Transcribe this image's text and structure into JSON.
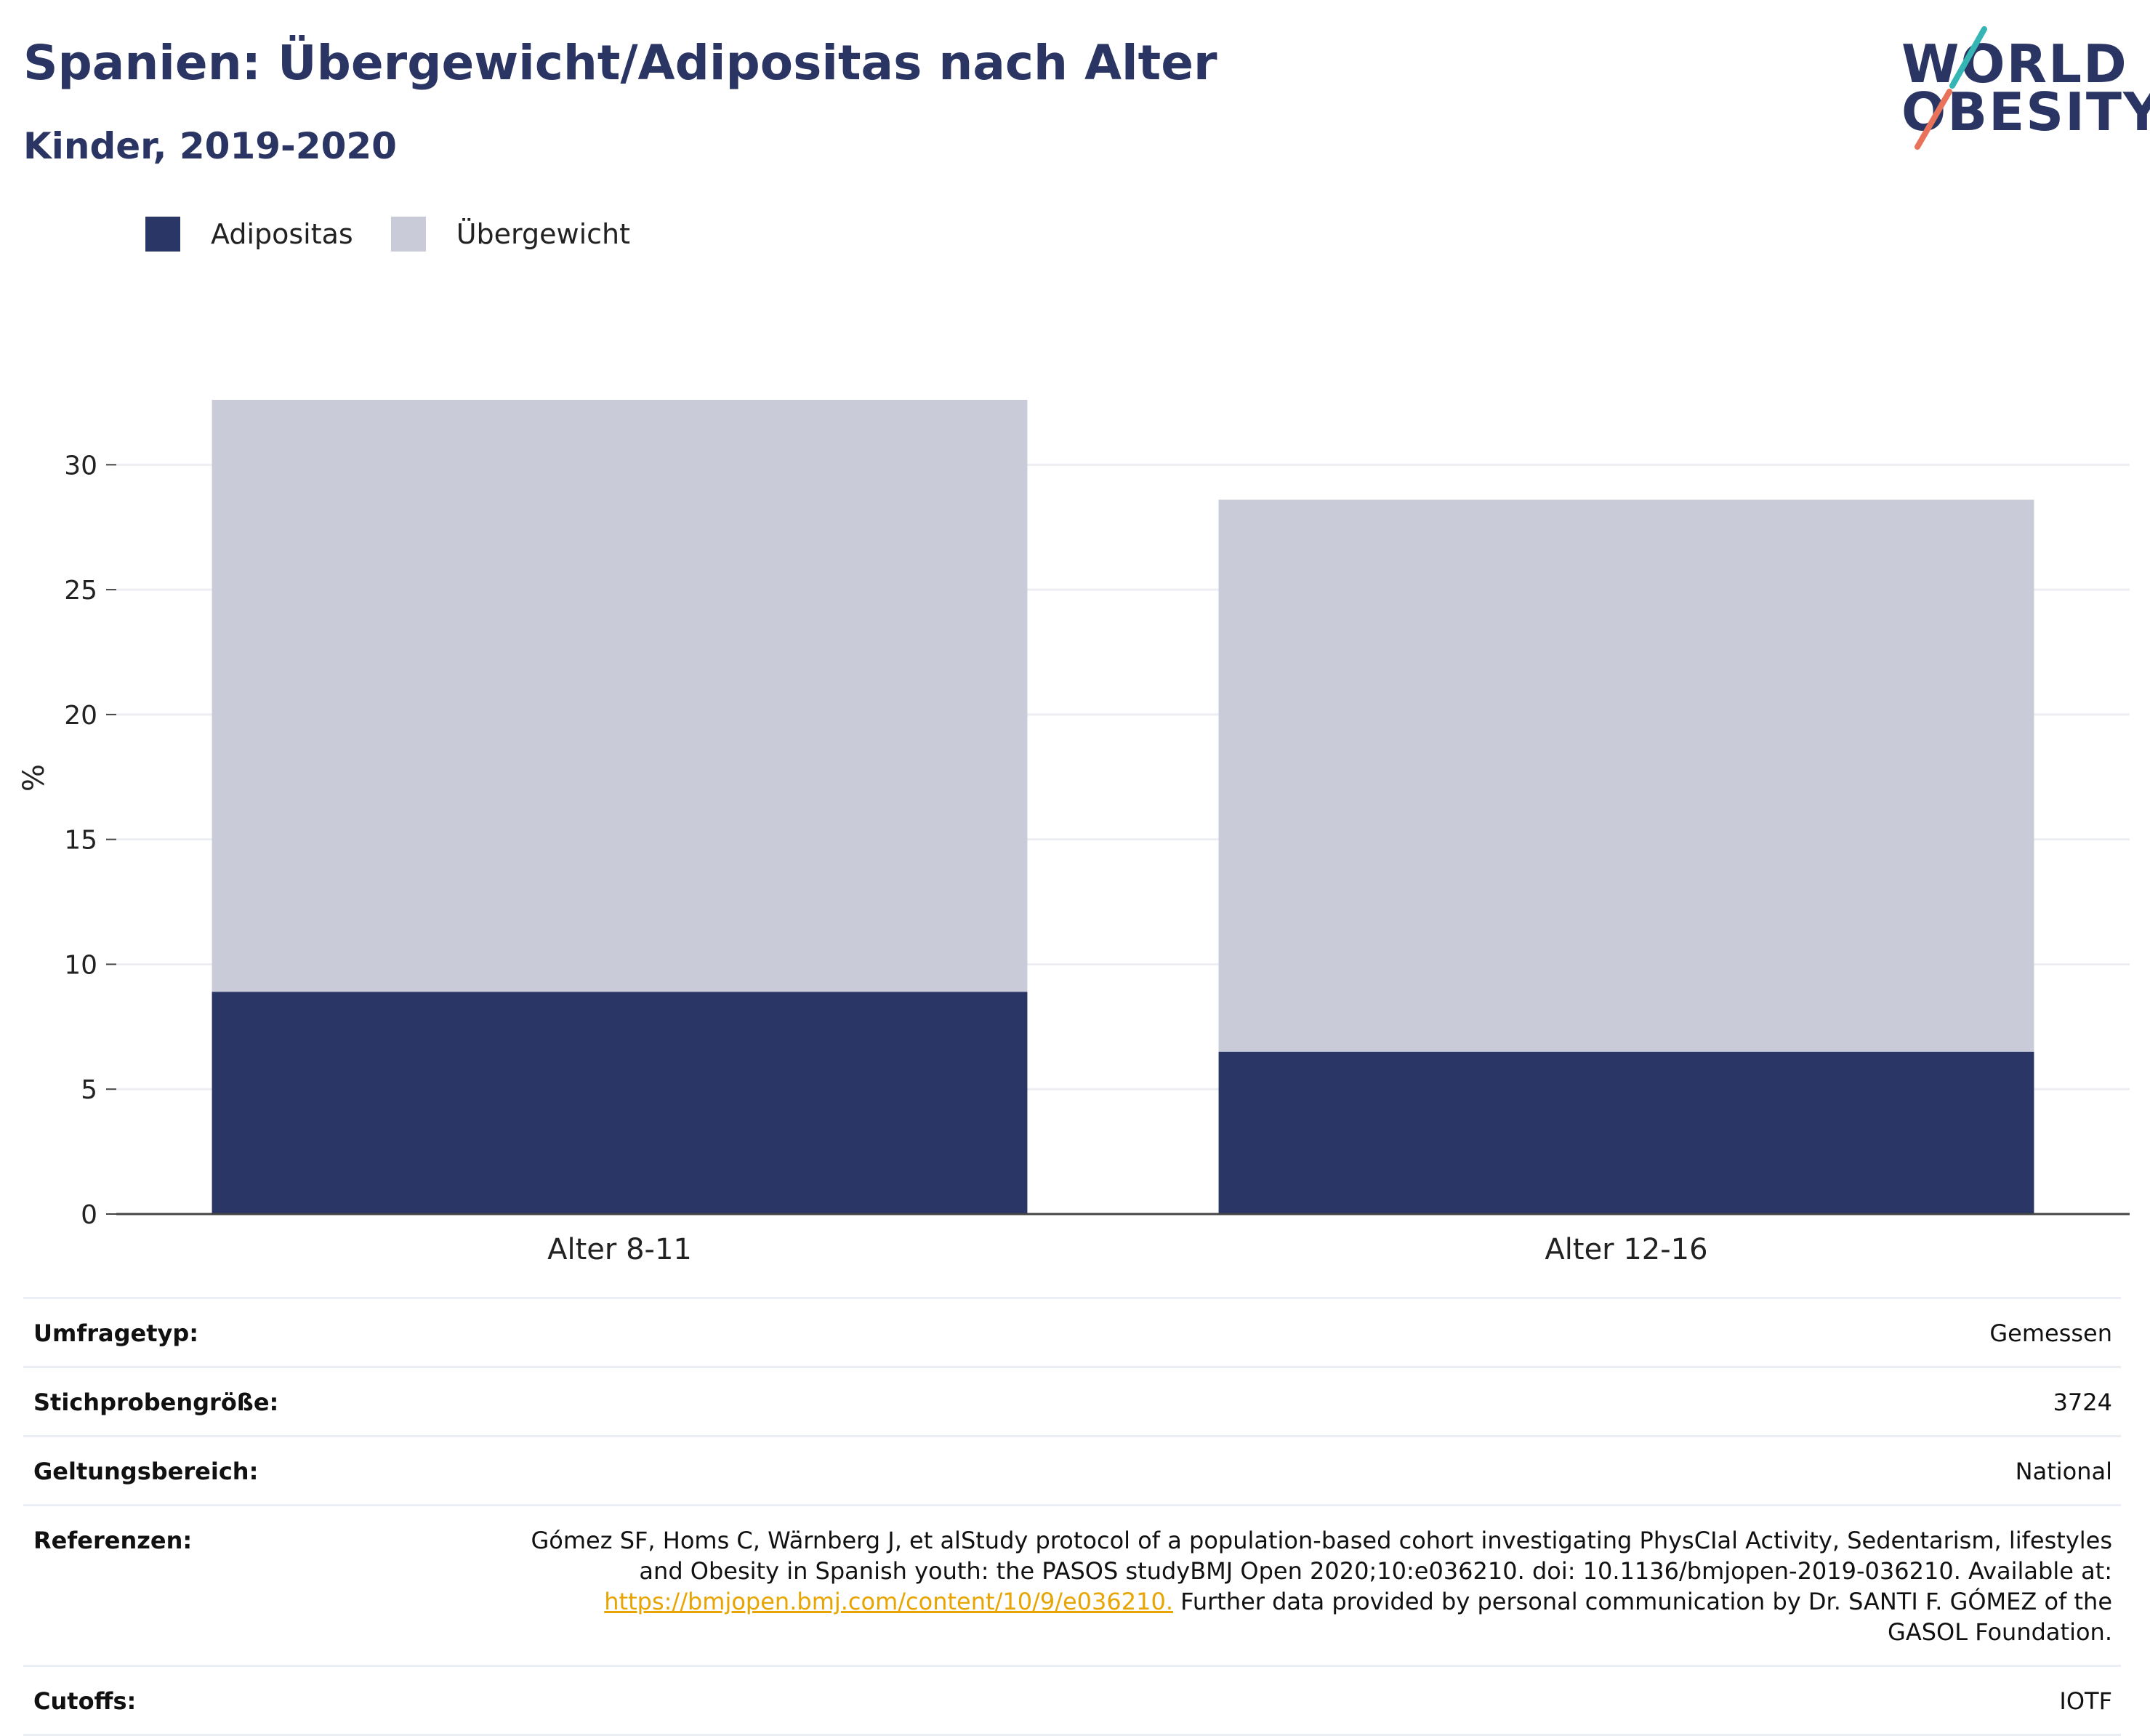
{
  "header": {
    "title": "Spanien: Übergewicht/Adipositas nach Alter",
    "subtitle": "Kinder, 2019-2020",
    "logo_line1": "WORLD",
    "logo_line2": "OBESITY"
  },
  "legend": [
    {
      "label": "Adipositas",
      "color": "#2a3665"
    },
    {
      "label": "Übergewicht",
      "color": "#c9ccd8"
    }
  ],
  "chart_data": {
    "type": "bar",
    "stacked": true,
    "categories": [
      "Alter 8-11",
      "Alter 12-16"
    ],
    "series": [
      {
        "name": "Adipositas",
        "values": [
          8.9,
          6.5
        ],
        "color": "#2a3665"
      },
      {
        "name": "Übergewicht",
        "values": [
          23.7,
          22.1
        ],
        "color": "#c9ccd8"
      }
    ],
    "ylabel": "%",
    "ylim": [
      0,
      32.6
    ],
    "yticks": [
      0,
      5,
      10,
      15,
      20,
      25,
      30
    ],
    "grid": true,
    "legend_position": "top-left"
  },
  "table": {
    "rows": [
      {
        "label": "Umfragetyp:",
        "value": "Gemessen"
      },
      {
        "label": "Stichprobengröße:",
        "value": "3724"
      },
      {
        "label": "Geltungsbereich:",
        "value": "National"
      }
    ],
    "references": {
      "label": "Referenzen:",
      "text_before": "Gómez SF, Homs C, Wärnberg J, et alStudy protocol of a population-based cohort investigating PhysCIal Activity, Sedentarism, lifestyles and Obesity in Spanish youth: the PASOS studyBMJ Open 2020;10:e036210. doi: 10.1136/bmjopen-2019-036210. Available at: ",
      "link": "https://bmjopen.bmj.com/content/10/9/e036210.",
      "text_after": " Further data provided by personal communication by Dr. SANTI F. GÓMEZ of the GASOL Foundation."
    },
    "cutoffs": {
      "label": "Cutoffs:",
      "value": "IOTF"
    }
  }
}
